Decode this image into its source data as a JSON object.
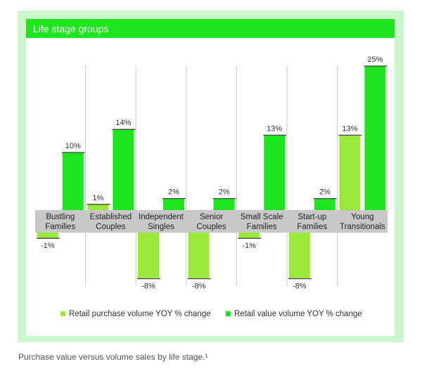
{
  "header": {
    "title": "Life stage groups"
  },
  "caption": {
    "text": "Purchase value versus volume sales by life stage.¹"
  },
  "colors": {
    "purchase": "#9ae83a",
    "value": "#1ee61e",
    "band": "#c8c8c8",
    "panel": "#ccf7cc",
    "divider": "#cccccc"
  },
  "chart_data": {
    "type": "bar",
    "categories": [
      [
        "Bustling",
        "Families"
      ],
      [
        "Established",
        "Couples"
      ],
      [
        "Independent",
        "Singles"
      ],
      [
        "Senior",
        "Couples"
      ],
      [
        "Small Scale",
        "Families"
      ],
      [
        "Start-up",
        "Families"
      ],
      [
        "Young",
        "Transitionals"
      ]
    ],
    "series": [
      {
        "name": "Retail purchase volume YOY % change",
        "values": [
          -1,
          1,
          -8,
          -8,
          -1,
          -8,
          13
        ],
        "labels": [
          "-1%",
          "1%",
          "-8%",
          "-8%",
          "-1%",
          "-8%",
          "13%"
        ]
      },
      {
        "name": "Retail value volume YOY % change",
        "values": [
          10,
          14,
          2,
          2,
          13,
          2,
          25
        ],
        "labels": [
          "10%",
          "14%",
          "2%",
          "2%",
          "13%",
          "2%",
          "25%"
        ]
      }
    ],
    "ylim": [
      -8,
      25
    ],
    "legend_position": "bottom"
  }
}
